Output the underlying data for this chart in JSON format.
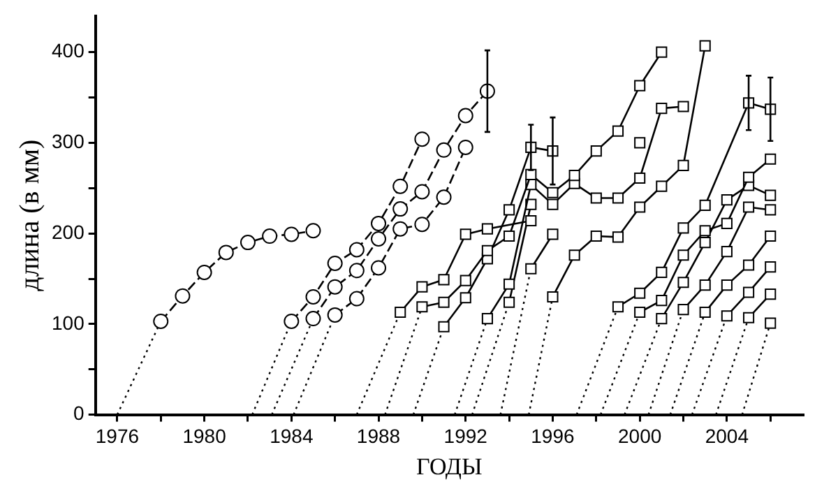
{
  "chart_data": {
    "type": "line",
    "xlabel": "ГОДЫ",
    "ylabel": "длина (в мм)",
    "xlim": [
      1975,
      2007.5
    ],
    "ylim": [
      0,
      440
    ],
    "xticks": [
      1976,
      {
        "value": 1978,
        "label": null
      },
      1980,
      {
        "value": 1982,
        "label": null
      },
      1984,
      {
        "value": 1986,
        "label": null
      },
      1988,
      {
        "value": 1990,
        "label": null
      },
      1992,
      {
        "value": 1994,
        "label": null
      },
      1996,
      {
        "value": 1998,
        "label": null
      },
      2000,
      {
        "value": 2002,
        "label": null
      },
      2004,
      {
        "value": 2006,
        "label": null
      }
    ],
    "yticks": [
      0,
      {
        "value": 50,
        "label": null
      },
      100,
      {
        "value": 150,
        "label": null
      },
      200,
      {
        "value": 250,
        "label": null
      },
      300,
      {
        "value": 350,
        "label": null
      },
      400
    ],
    "legend": false,
    "grid": false,
    "series": [
      {
        "color": "#000000",
        "marker": "circle",
        "line_style": "dashed",
        "x": [
          1978,
          1979,
          1980,
          1981,
          1982,
          1983,
          1984,
          1985
        ],
        "values": [
          103,
          131,
          157,
          179,
          190,
          197,
          199,
          203
        ]
      },
      {
        "color": "#000000",
        "marker": "circle",
        "line_style": "dashed",
        "x": [
          1984,
          1985,
          1986,
          1987,
          1988,
          1989,
          1990
        ],
        "values": [
          103,
          130,
          167,
          182,
          211,
          252,
          304
        ]
      },
      {
        "color": "#000000",
        "marker": "circle",
        "line_style": "dashed",
        "x": [
          1985,
          1986,
          1987,
          1988,
          1989,
          1990,
          1991,
          1992,
          1993
        ],
        "values": [
          106,
          141,
          159,
          194,
          227,
          246,
          292,
          330,
          357
        ],
        "errors": [
          null,
          null,
          null,
          null,
          null,
          null,
          null,
          null,
          45
        ]
      },
      {
        "color": "#000000",
        "marker": "circle",
        "line_style": "dashed",
        "x": [
          1986,
          1987,
          1988,
          1989,
          1990,
          1991,
          1992
        ],
        "values": [
          110,
          128,
          162,
          205,
          210,
          240,
          295
        ]
      },
      {
        "color": "#000000",
        "marker": "square",
        "line_style": "solid",
        "x": [
          1989,
          1990,
          1991,
          1992,
          1993,
          1995
        ],
        "values": [
          113,
          141,
          149,
          199,
          205,
          214
        ]
      },
      {
        "color": "#000000",
        "marker": "square",
        "line_style": "solid",
        "x": [
          1990,
          1991,
          1992,
          1993,
          1994,
          1995,
          1996,
          1997,
          1998,
          1999,
          2000,
          2001
        ],
        "values": [
          119,
          124,
          148,
          181,
          197,
          265,
          245,
          264,
          291,
          313,
          363,
          400
        ]
      },
      {
        "color": "#000000",
        "marker": "square",
        "line_style": "solid",
        "x": [
          1991,
          1992,
          1993,
          1994,
          1995,
          1996
        ],
        "values": [
          97,
          129,
          172,
          226,
          295,
          291
        ],
        "errors": [
          null,
          null,
          null,
          null,
          25,
          37
        ]
      },
      {
        "color": "#000000",
        "marker": "square",
        "line_style": "solid",
        "x": [
          1993,
          1994,
          1995,
          1996,
          1997,
          1998,
          1999,
          2000,
          2001,
          2002
        ],
        "values": [
          106,
          144,
          254,
          232,
          255,
          239,
          239,
          261,
          338,
          340
        ]
      },
      {
        "color": "#000000",
        "marker": "square",
        "line_style": "solid",
        "x": [
          1994,
          1995
        ],
        "values": [
          124,
          232
        ]
      },
      {
        "color": "#000000",
        "marker": "square",
        "line_style": "solid",
        "x": [
          1995,
          1996
        ],
        "values": [
          161,
          199
        ]
      },
      {
        "color": "#000000",
        "marker": "square",
        "line_style": "solid",
        "x": [
          1996,
          1997,
          1998,
          1999,
          2000,
          2001,
          2002,
          2003
        ],
        "values": [
          130,
          176,
          197,
          196,
          229,
          252,
          275,
          407
        ]
      },
      {
        "color": "#000000",
        "marker": "square",
        "line_style": "solid",
        "x": [
          2000
        ],
        "values": [
          300
        ]
      },
      {
        "color": "#000000",
        "marker": "square",
        "line_style": "solid",
        "x": [
          1999,
          2000,
          2001,
          2002,
          2003,
          2005,
          2006
        ],
        "values": [
          119,
          134,
          157,
          206,
          231,
          344,
          337
        ],
        "errors": [
          null,
          null,
          null,
          null,
          null,
          30,
          35
        ]
      },
      {
        "color": "#000000",
        "marker": "square",
        "line_style": "solid",
        "x": [
          2000,
          2001,
          2002,
          2003,
          2004,
          2005,
          2006
        ],
        "values": [
          113,
          126,
          176,
          203,
          211,
          262,
          282
        ]
      },
      {
        "color": "#000000",
        "marker": "square",
        "line_style": "solid",
        "x": [
          2001,
          2002,
          2003,
          2004,
          2005,
          2006
        ],
        "values": [
          106,
          146,
          190,
          237,
          253,
          242
        ]
      },
      {
        "color": "#000000",
        "marker": "square",
        "line_style": "solid",
        "x": [
          2002,
          2003,
          2004,
          2005,
          2006
        ],
        "values": [
          116,
          143,
          180,
          229,
          226
        ]
      },
      {
        "color": "#000000",
        "marker": "square",
        "line_style": "solid",
        "x": [
          2003,
          2004,
          2005,
          2006
        ],
        "values": [
          113,
          143,
          165,
          197
        ]
      },
      {
        "color": "#000000",
        "marker": "square",
        "line_style": "solid",
        "x": [
          2004,
          2005,
          2006
        ],
        "values": [
          109,
          135,
          163
        ]
      },
      {
        "color": "#000000",
        "marker": "square",
        "line_style": "solid",
        "x": [
          2005,
          2006
        ],
        "values": [
          107,
          133
        ]
      },
      {
        "color": "#000000",
        "marker": "square",
        "line_style": "solid",
        "x": [
          2006
        ],
        "values": [
          101
        ]
      },
      {
        "color": "#000000",
        "marker": "none",
        "line_style": "dotted",
        "x": [
          1976,
          1978
        ],
        "values": [
          0,
          103
        ]
      },
      {
        "color": "#000000",
        "marker": "none",
        "line_style": "dotted",
        "x": [
          1982.2,
          1984
        ],
        "values": [
          0,
          103
        ]
      },
      {
        "color": "#000000",
        "marker": "none",
        "line_style": "dotted",
        "x": [
          1983.1,
          1985
        ],
        "values": [
          0,
          106
        ]
      },
      {
        "color": "#000000",
        "marker": "none",
        "line_style": "dotted",
        "x": [
          1984.1,
          1986
        ],
        "values": [
          0,
          110
        ]
      },
      {
        "color": "#000000",
        "marker": "none",
        "line_style": "dotted",
        "x": [
          1987,
          1989
        ],
        "values": [
          0,
          113
        ]
      },
      {
        "color": "#000000",
        "marker": "none",
        "line_style": "dotted",
        "x": [
          1988.3,
          1990
        ],
        "values": [
          0,
          119
        ]
      },
      {
        "color": "#000000",
        "marker": "none",
        "line_style": "dotted",
        "x": [
          1989.6,
          1991
        ],
        "values": [
          0,
          97
        ]
      },
      {
        "color": "#000000",
        "marker": "none",
        "line_style": "dotted",
        "x": [
          1991.5,
          1993
        ],
        "values": [
          0,
          106
        ]
      },
      {
        "color": "#000000",
        "marker": "none",
        "line_style": "dotted",
        "x": [
          1992.3,
          1994
        ],
        "values": [
          0,
          124
        ]
      },
      {
        "color": "#000000",
        "marker": "none",
        "line_style": "dotted",
        "x": [
          1993.6,
          1995
        ],
        "values": [
          0,
          161
        ]
      },
      {
        "color": "#000000",
        "marker": "none",
        "line_style": "dotted",
        "x": [
          1994.9,
          1996
        ],
        "values": [
          0,
          130
        ]
      },
      {
        "color": "#000000",
        "marker": "none",
        "line_style": "dotted",
        "x": [
          1997.1,
          1999
        ],
        "values": [
          0,
          119
        ]
      },
      {
        "color": "#000000",
        "marker": "none",
        "line_style": "dotted",
        "x": [
          1998.2,
          2000
        ],
        "values": [
          0,
          113
        ]
      },
      {
        "color": "#000000",
        "marker": "none",
        "line_style": "dotted",
        "x": [
          1999.3,
          2001
        ],
        "values": [
          0,
          106
        ]
      },
      {
        "color": "#000000",
        "marker": "none",
        "line_style": "dotted",
        "x": [
          2000.4,
          2002
        ],
        "values": [
          0,
          116
        ]
      },
      {
        "color": "#000000",
        "marker": "none",
        "line_style": "dotted",
        "x": [
          2001.4,
          2003
        ],
        "values": [
          0,
          113
        ]
      },
      {
        "color": "#000000",
        "marker": "none",
        "line_style": "dotted",
        "x": [
          2002.4,
          2004
        ],
        "values": [
          0,
          109
        ]
      },
      {
        "color": "#000000",
        "marker": "none",
        "line_style": "dotted",
        "x": [
          2003.5,
          2005
        ],
        "values": [
          0,
          107
        ]
      },
      {
        "color": "#000000",
        "marker": "none",
        "line_style": "dotted",
        "x": [
          2004.7,
          2006
        ],
        "values": [
          0,
          101
        ]
      }
    ]
  }
}
